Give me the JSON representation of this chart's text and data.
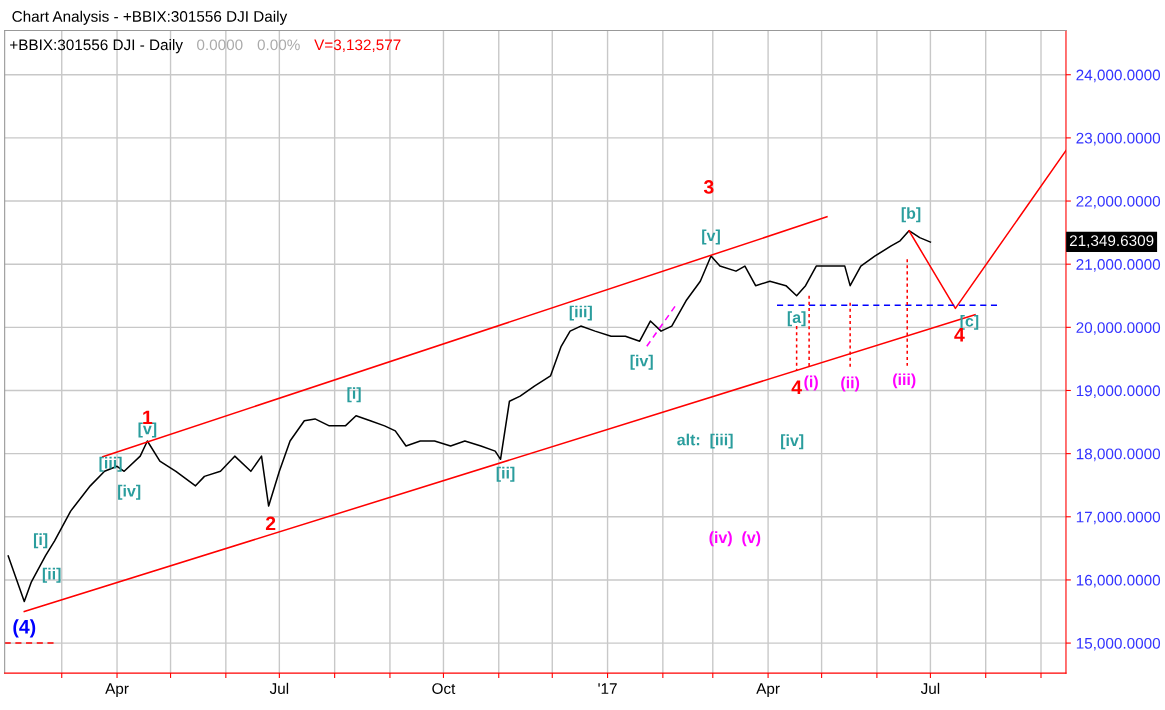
{
  "chart_data": {
    "type": "line",
    "title": "Chart Analysis - +BBIX:301556 DJI Daily",
    "x": [
      "2016-01-31",
      "2016-02-04",
      "2016-02-09",
      "2016-02-13",
      "2016-02-21",
      "2016-02-26",
      "2016-03-06",
      "2016-03-17",
      "2016-03-25",
      "2016-04-01",
      "2016-04-05",
      "2016-04-14",
      "2016-04-18",
      "2016-04-25",
      "2016-05-04",
      "2016-05-15",
      "2016-05-20",
      "2016-05-29",
      "2016-06-06",
      "2016-06-15",
      "2016-06-21",
      "2016-06-25",
      "2016-07-01",
      "2016-07-07",
      "2016-07-15",
      "2016-07-21",
      "2016-07-29",
      "2016-08-07",
      "2016-08-13",
      "2016-08-21",
      "2016-08-29",
      "2016-09-04",
      "2016-09-10",
      "2016-09-18",
      "2016-09-26",
      "2016-10-05",
      "2016-10-13",
      "2016-10-22",
      "2016-10-30",
      "2016-11-02",
      "2016-11-07",
      "2016-11-13",
      "2016-11-21",
      "2016-11-30",
      "2016-12-06",
      "2016-12-11",
      "2016-12-17",
      "2016-12-25",
      "2017-01-03",
      "2017-01-11",
      "2017-01-19",
      "2017-01-25",
      "2017-01-31",
      "2017-02-06",
      "2017-02-14",
      "2017-02-22",
      "2017-02-28",
      "2017-03-05",
      "2017-03-14",
      "2017-03-19",
      "2017-03-25",
      "2017-04-02",
      "2017-04-11",
      "2017-04-17",
      "2017-04-22",
      "2017-04-28",
      "2017-05-06",
      "2017-05-14",
      "2017-05-17",
      "2017-05-23",
      "2017-05-31",
      "2017-06-09",
      "2017-06-14",
      "2017-06-19",
      "2017-06-25",
      "2017-07-01"
    ],
    "series": [
      {
        "color": "#000000",
        "values": [
          16380,
          16060,
          15660,
          15970,
          16390,
          16620,
          17090,
          17490,
          17720,
          17800,
          17720,
          17960,
          18200,
          17880,
          17720,
          17490,
          17640,
          17720,
          17960,
          17720,
          17960,
          17170,
          17720,
          18200,
          18520,
          18550,
          18440,
          18440,
          18600,
          18520,
          18440,
          18360,
          18120,
          18200,
          18200,
          18120,
          18200,
          18120,
          18040,
          17910,
          18830,
          18910,
          19070,
          19230,
          19700,
          19940,
          20020,
          19940,
          19860,
          19860,
          19780,
          20100,
          19940,
          20020,
          20420,
          20730,
          21130,
          20970,
          20890,
          20970,
          20660,
          20730,
          20660,
          20500,
          20660,
          20970,
          20970,
          20970,
          20660,
          20970,
          21130,
          21290,
          21370,
          21530,
          21420,
          21350
        ]
      },
      {
        "color": "#ff0000",
        "x": [
          "2016-03-24",
          "2017-05-04"
        ],
        "values": [
          17950,
          21750
        ]
      },
      {
        "color": "#ff0000",
        "x": [
          "2016-02-09",
          "2017-07-26"
        ],
        "values": [
          15500,
          20200
        ]
      },
      {
        "color": "#ff0000",
        "x": [
          "2017-06-19",
          "2017-07-15",
          "2017-09-15"
        ],
        "values": [
          21530,
          20300,
          22800
        ]
      },
      {
        "color": "#0000ff",
        "line_style": "dashed",
        "x": [
          "2017-04-06",
          "2017-08-08"
        ],
        "values": [
          20350,
          20350
        ]
      },
      {
        "color": "#ff0000",
        "line_style": "dashed",
        "x": [
          "2016-01-29",
          "2016-02-26"
        ],
        "values": [
          15000,
          15000
        ]
      },
      {
        "color": "#ff0000",
        "line_style": "dotted",
        "x": [
          "2017-04-17",
          "2017-04-17"
        ],
        "values": [
          20020,
          19310
        ]
      },
      {
        "color": "#ff0000",
        "line_style": "dotted",
        "x": [
          "2017-04-24",
          "2017-04-24"
        ],
        "values": [
          20500,
          19340
        ]
      },
      {
        "color": "#ff0000",
        "line_style": "dotted",
        "x": [
          "2017-05-17",
          "2017-05-17"
        ],
        "values": [
          20390,
          19340
        ]
      },
      {
        "color": "#ff0000",
        "line_style": "dotted",
        "x": [
          "2017-06-18",
          "2017-06-18"
        ],
        "values": [
          21080,
          19390
        ]
      },
      {
        "color": "#ff00ff",
        "line_style": "dashed",
        "x": [
          "2017-01-23",
          "2017-02-08"
        ],
        "values": [
          19700,
          20340
        ]
      }
    ],
    "xlim": [
      "2016-01-29",
      "2017-09-15"
    ],
    "xticks": [
      {
        "value": "2016-03-01",
        "label": null
      },
      {
        "value": "2016-04-01",
        "label": "Apr"
      },
      {
        "value": "2016-05-01",
        "label": null
      },
      {
        "value": "2016-06-01",
        "label": null
      },
      {
        "value": "2016-07-01",
        "label": "Jul"
      },
      {
        "value": "2016-08-01",
        "label": null
      },
      {
        "value": "2016-09-01",
        "label": null
      },
      {
        "value": "2016-10-01",
        "label": "Oct"
      },
      {
        "value": "2016-11-01",
        "label": null
      },
      {
        "value": "2016-12-01",
        "label": null
      },
      {
        "value": "2017-01-01",
        "label": "'17"
      },
      {
        "value": "2017-02-01",
        "label": null
      },
      {
        "value": "2017-03-01",
        "label": null
      },
      {
        "value": "2017-04-01",
        "label": "Apr"
      },
      {
        "value": "2017-05-01",
        "label": null
      },
      {
        "value": "2017-06-01",
        "label": null
      },
      {
        "value": "2017-07-01",
        "label": "Jul"
      },
      {
        "value": "2017-08-01",
        "label": null
      },
      {
        "value": "2017-09-01",
        "label": null
      }
    ],
    "ylim": [
      14525,
      24700
    ],
    "yticks": [
      {
        "value": 15000,
        "label": "15,000.0000"
      },
      {
        "value": 16000,
        "label": "16,000.0000"
      },
      {
        "value": 17000,
        "label": "17,000.0000"
      },
      {
        "value": 18000,
        "label": "18,000.0000"
      },
      {
        "value": 19000,
        "label": "19,000.0000"
      },
      {
        "value": 20000,
        "label": "20,000.0000"
      },
      {
        "value": 21000,
        "label": "21,000.0000"
      },
      {
        "value": 22000,
        "label": "22,000.0000"
      },
      {
        "value": 23000,
        "label": "23,000.0000"
      },
      {
        "value": 24000,
        "label": "24,000.0000"
      }
    ],
    "grid": true,
    "marker": "none",
    "line_style": "solid",
    "annotations": [
      "+BBIX:301556 DJI - Daily",
      "0.0000",
      "0.00%",
      "V=3,132,577",
      "21,349.6309",
      {
        "text": "(4)",
        "x": "2016-02-09",
        "y": 15660
      },
      {
        "text": "[i]",
        "x": "2016-02-26",
        "y": 16620
      },
      {
        "text": "[ii]",
        "x": "2016-02-21",
        "y": 16390
      },
      {
        "text": "[iii]",
        "x": "2016-03-25",
        "y": 17720
      },
      {
        "text": "[iv]",
        "x": "2016-04-05",
        "y": 17720
      },
      {
        "text": "[v]",
        "x": "2016-04-18",
        "y": 18200
      },
      {
        "text": "1",
        "x": "2016-04-18",
        "y": 18200
      },
      {
        "text": "2",
        "x": "2016-06-25",
        "y": 17170
      },
      {
        "text": "[i]",
        "x": "2016-08-13",
        "y": 18600
      },
      {
        "text": "[ii]",
        "x": "2016-11-02",
        "y": 17910
      },
      {
        "text": "[iii]",
        "x": "2016-12-17",
        "y": 20020
      },
      {
        "text": "[iv]",
        "x": "2017-01-19",
        "y": 19780
      },
      "3",
      {
        "text": "[v]",
        "x": "2017-02-28",
        "y": 21130
      },
      "alt:  [iii]",
      "[iv]",
      "(iv)  (v)",
      {
        "text": "[a]",
        "x": "2017-04-17",
        "y": 20500
      },
      {
        "text": "4",
        "x": "2017-04-17",
        "y": 19310
      },
      {
        "text": "(i)",
        "x": "2017-04-24",
        "y": 19340
      },
      {
        "text": "(ii)",
        "x": "2017-05-17",
        "y": 19340
      },
      {
        "text": "(iii)",
        "x": "2017-06-18",
        "y": 19390
      },
      {
        "text": "[b]",
        "x": "2017-06-19",
        "y": 21530
      },
      {
        "text": "[c]",
        "x": "2017-07-15",
        "y": 20300
      },
      {
        "text": "4",
        "x": "2017-07-15",
        "y": 20300
      }
    ]
  }
}
